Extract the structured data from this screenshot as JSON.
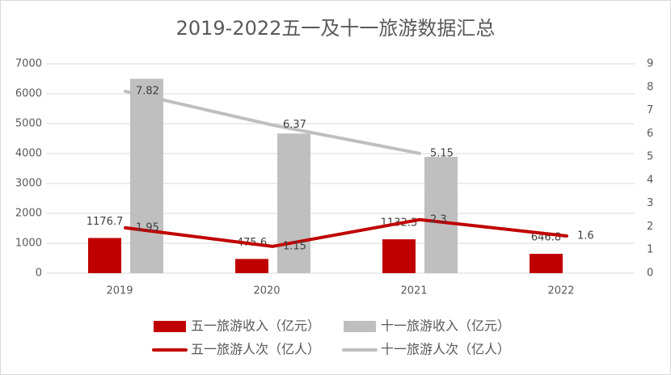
{
  "chart_data": {
    "type": "bar",
    "title": "2019-2022五一及十一旅游数据汇总",
    "categories": [
      "2019",
      "2020",
      "2021",
      "2022"
    ],
    "ylim": [
      0,
      7000
    ],
    "yticks": [
      0,
      1000,
      2000,
      3000,
      4000,
      5000,
      6000,
      7000
    ],
    "y2lim": [
      0,
      9
    ],
    "y2ticks": [
      0,
      1,
      2,
      3,
      4,
      5,
      6,
      7,
      8,
      9
    ],
    "grid": true,
    "legend": "bottom",
    "series": [
      {
        "name": "五一旅游收入（亿元）",
        "type": "bar",
        "color": "#c00000",
        "values": [
          1176.7,
          475.6,
          1132.3,
          646.8
        ],
        "data_labels": true
      },
      {
        "name": "十一旅游收入（亿元）",
        "type": "bar",
        "color": "#bfbfbf",
        "values": [
          6500,
          4670,
          3890,
          null
        ],
        "data_labels": false
      },
      {
        "name": "五一旅游人次（亿人）",
        "type": "line",
        "axis": "y2",
        "color": "#c00000",
        "values": [
          1.95,
          1.15,
          2.3,
          1.6
        ],
        "data_labels": true
      },
      {
        "name": "十一旅游人次（亿人）",
        "type": "line",
        "axis": "y2",
        "color": "#bfbfbf",
        "values": [
          7.82,
          6.37,
          5.15,
          null
        ],
        "data_labels": true
      }
    ]
  }
}
